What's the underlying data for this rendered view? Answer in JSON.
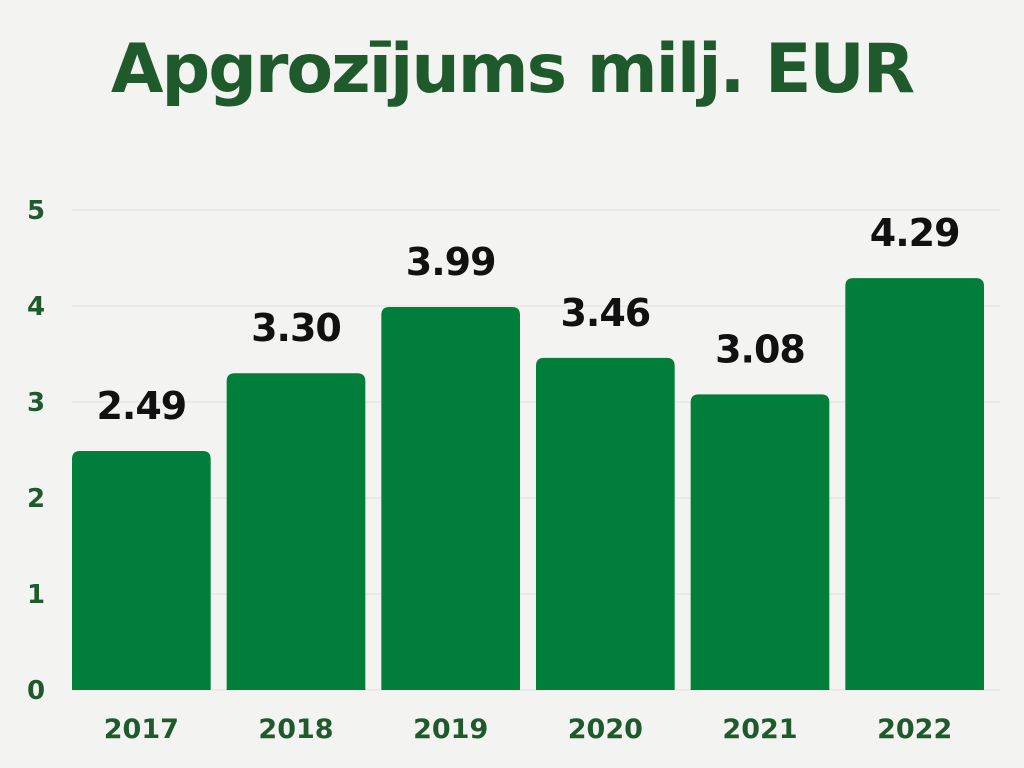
{
  "chart_data": {
    "type": "bar",
    "title": "Apgrozījums milj. EUR",
    "categories": [
      "2017",
      "2018",
      "2019",
      "2020",
      "2021",
      "2022"
    ],
    "values": [
      2.49,
      3.3,
      3.99,
      3.46,
      3.08,
      4.29
    ],
    "value_labels": [
      "2.49",
      "3.30",
      "3.99",
      "3.46",
      "3.08",
      "4.29"
    ],
    "xlabel": "",
    "ylabel": "",
    "ylim": [
      0,
      5
    ],
    "yticks": [
      "0",
      "1",
      "2",
      "3",
      "4",
      "5"
    ],
    "grid": true,
    "legend": "none",
    "colors": {
      "bar": "#007e3a",
      "title": "#1f5a2c",
      "tick": "#1f5a2c",
      "value_label": "#111111",
      "grid": "#e0e0de"
    }
  }
}
